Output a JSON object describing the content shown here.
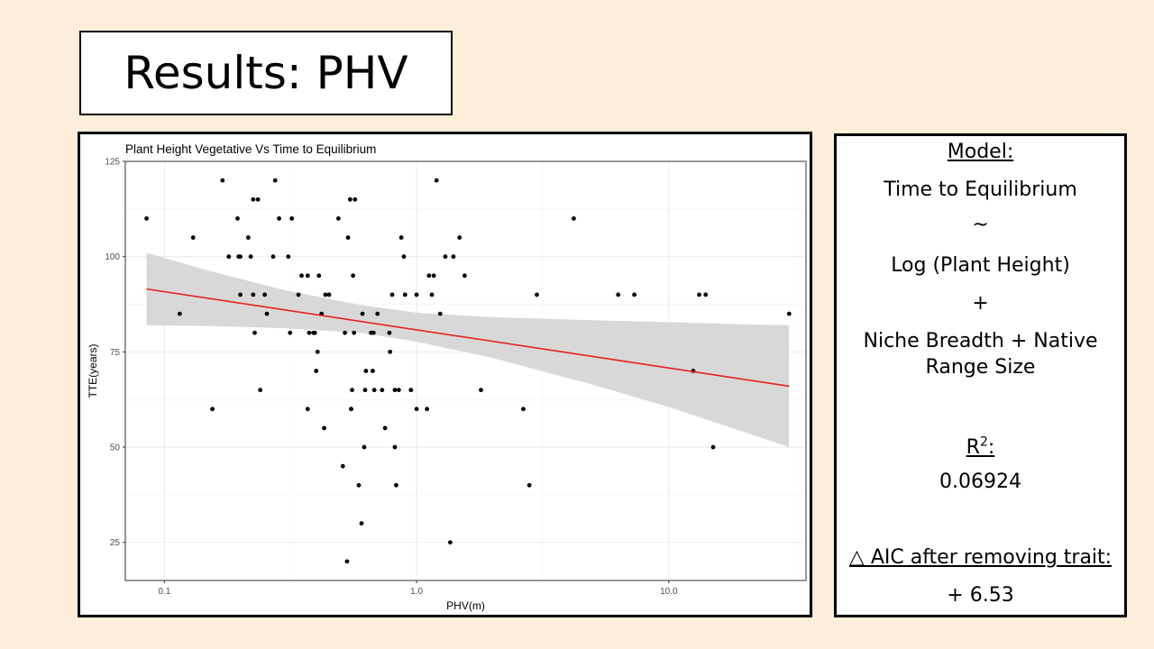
{
  "slide": {
    "title": "Results: PHV",
    "background": "#fdeeda"
  },
  "model_panel": {
    "model_heading": "Model:",
    "line1": "Time to Equilibrium",
    "tilde": "~",
    "line2": "Log (Plant Height)",
    "plus": "+",
    "line3a": "Niche Breadth + Native",
    "line3b": "Range Size",
    "r2_label_base": "R",
    "r2_label_sup": "2",
    "r2_label_colon": ":",
    "r2_value": "0.06924",
    "aic_label": "△ AIC after removing trait:",
    "aic_value": "+ 6.53"
  },
  "chart_data": {
    "type": "scatter",
    "title": "Plant Height Vegetative Vs Time to Equilibrium",
    "xlabel": "PHV(m)",
    "ylabel": "TTE(years)",
    "x_scale": "log10",
    "xlim": [
      0.07,
      35
    ],
    "ylim": [
      15,
      125
    ],
    "x_ticks": [
      0.1,
      1.0,
      10.0
    ],
    "x_tick_labels": [
      "0.1",
      "1.0",
      "10.0"
    ],
    "y_ticks": [
      25,
      50,
      75,
      100,
      125
    ],
    "y_tick_labels": [
      "25",
      "50",
      "75",
      "100",
      "125"
    ],
    "grid": true,
    "point_color": "#000000",
    "line_color": "#e8201e",
    "band_color": "#d6d6d6",
    "points": [
      [
        0.085,
        110
      ],
      [
        0.115,
        85
      ],
      [
        0.13,
        105
      ],
      [
        0.155,
        60
      ],
      [
        0.17,
        120
      ],
      [
        0.18,
        100
      ],
      [
        0.195,
        110
      ],
      [
        0.197,
        100
      ],
      [
        0.2,
        100
      ],
      [
        0.2,
        90
      ],
      [
        0.215,
        105
      ],
      [
        0.22,
        100
      ],
      [
        0.225,
        115
      ],
      [
        0.225,
        90
      ],
      [
        0.228,
        80
      ],
      [
        0.235,
        115
      ],
      [
        0.24,
        65
      ],
      [
        0.25,
        90
      ],
      [
        0.255,
        85
      ],
      [
        0.27,
        100
      ],
      [
        0.275,
        120
      ],
      [
        0.285,
        110
      ],
      [
        0.31,
        100
      ],
      [
        0.315,
        80
      ],
      [
        0.32,
        110
      ],
      [
        0.34,
        90
      ],
      [
        0.35,
        95
      ],
      [
        0.37,
        95
      ],
      [
        0.37,
        60
      ],
      [
        0.375,
        80
      ],
      [
        0.39,
        80
      ],
      [
        0.395,
        80
      ],
      [
        0.4,
        70
      ],
      [
        0.405,
        75
      ],
      [
        0.41,
        95
      ],
      [
        0.42,
        85
      ],
      [
        0.43,
        55
      ],
      [
        0.435,
        90
      ],
      [
        0.45,
        90
      ],
      [
        0.49,
        110
      ],
      [
        0.51,
        45
      ],
      [
        0.52,
        80
      ],
      [
        0.535,
        105
      ],
      [
        0.545,
        115
      ],
      [
        0.55,
        60
      ],
      [
        0.555,
        65
      ],
      [
        0.56,
        95
      ],
      [
        0.565,
        80
      ],
      [
        0.57,
        115
      ],
      [
        0.59,
        40
      ],
      [
        0.605,
        30
      ],
      [
        0.61,
        85
      ],
      [
        0.62,
        50
      ],
      [
        0.625,
        65
      ],
      [
        0.63,
        70
      ],
      [
        0.66,
        80
      ],
      [
        0.67,
        70
      ],
      [
        0.675,
        80
      ],
      [
        0.68,
        65
      ],
      [
        0.7,
        85
      ],
      [
        0.53,
        20
      ],
      [
        0.55,
        60
      ],
      [
        0.73,
        65
      ],
      [
        0.75,
        55
      ],
      [
        0.78,
        80
      ],
      [
        0.785,
        75
      ],
      [
        0.8,
        90
      ],
      [
        0.82,
        65
      ],
      [
        0.82,
        50
      ],
      [
        0.83,
        40
      ],
      [
        0.85,
        65
      ],
      [
        0.87,
        105
      ],
      [
        0.89,
        100
      ],
      [
        0.9,
        90
      ],
      [
        0.95,
        65
      ],
      [
        1.0,
        60
      ],
      [
        1.0,
        90
      ],
      [
        1.1,
        60
      ],
      [
        1.12,
        95
      ],
      [
        1.15,
        90
      ],
      [
        1.17,
        95
      ],
      [
        1.2,
        120
      ],
      [
        1.24,
        85
      ],
      [
        1.3,
        100
      ],
      [
        1.36,
        25
      ],
      [
        1.4,
        100
      ],
      [
        1.48,
        105
      ],
      [
        1.55,
        95
      ],
      [
        1.8,
        65
      ],
      [
        2.65,
        60
      ],
      [
        2.8,
        40
      ],
      [
        3.0,
        90
      ],
      [
        4.2,
        110
      ],
      [
        6.3,
        90
      ],
      [
        7.3,
        90
      ],
      [
        12.5,
        70
      ],
      [
        13.2,
        90
      ],
      [
        14.0,
        90
      ],
      [
        15.0,
        50
      ],
      [
        30.0,
        85
      ]
    ],
    "fit_line": [
      [
        0.085,
        91.5
      ],
      [
        30.0,
        66.0
      ]
    ],
    "confidence_band": {
      "x": [
        0.085,
        0.15,
        0.3,
        0.6,
        1.0,
        2.0,
        5.0,
        10.0,
        20.0,
        30.0
      ],
      "upper": [
        101.0,
        96.3,
        91.2,
        87.3,
        85.3,
        84.1,
        83.3,
        82.8,
        82.2,
        82.0
      ],
      "lower": [
        82.0,
        81.8,
        81.2,
        80.0,
        77.7,
        73.4,
        66.4,
        60.5,
        53.9,
        50.0
      ]
    }
  }
}
